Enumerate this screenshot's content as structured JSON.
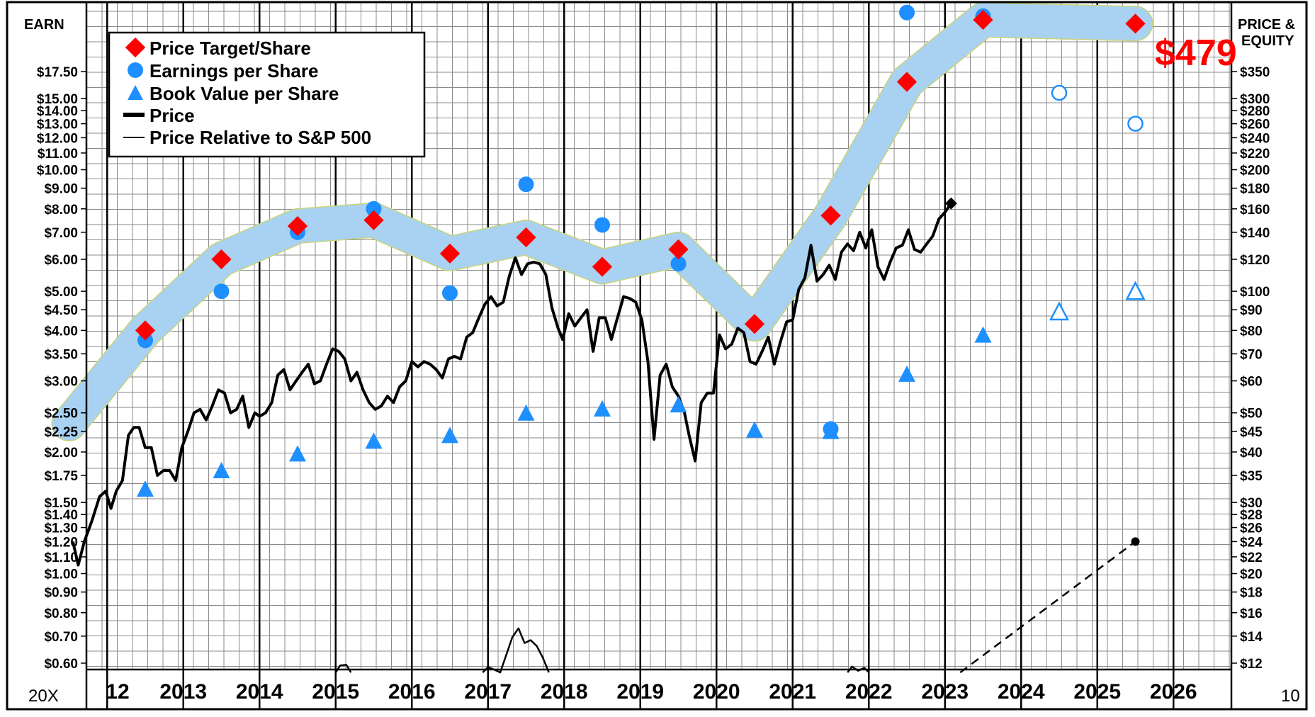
{
  "chart_data": {
    "type": "line",
    "title": "",
    "left_axis_label": "EARN",
    "right_axis_label_line1": "PRICE &",
    "right_axis_label_line2": "EQUITY",
    "corner_left": "20X",
    "corner_right": "10",
    "target_price_label": "$479",
    "x_tick_labels": [
      "12",
      "2013",
      "2014",
      "2015",
      "2016",
      "2017",
      "2018",
      "2019",
      "2020",
      "2021",
      "2022",
      "2023",
      "2024",
      "2025",
      "2026"
    ],
    "y_left_ticks": [
      {
        "label": "$17.50",
        "value": 17.5
      },
      {
        "label": "$15.00",
        "value": 15
      },
      {
        "label": "$14.00",
        "value": 14
      },
      {
        "label": "$13.00",
        "value": 13
      },
      {
        "label": "$12.00",
        "value": 12
      },
      {
        "label": "$11.00",
        "value": 11
      },
      {
        "label": "$10.00",
        "value": 10
      },
      {
        "label": "$9.00",
        "value": 9
      },
      {
        "label": "$8.00",
        "value": 8
      },
      {
        "label": "$7.00",
        "value": 7
      },
      {
        "label": "$6.00",
        "value": 6
      },
      {
        "label": "$5.00",
        "value": 5
      },
      {
        "label": "$4.50",
        "value": 4.5
      },
      {
        "label": "$4.00",
        "value": 4
      },
      {
        "label": "$3.50",
        "value": 3.5
      },
      {
        "label": "$3.00",
        "value": 3
      },
      {
        "label": "$2.50",
        "value": 2.5
      },
      {
        "label": "$2.25",
        "value": 2.25
      },
      {
        "label": "$2.00",
        "value": 2
      },
      {
        "label": "$1.75",
        "value": 1.75
      },
      {
        "label": "$1.50",
        "value": 1.5
      },
      {
        "label": "$1.40",
        "value": 1.4
      },
      {
        "label": "$1.30",
        "value": 1.3
      },
      {
        "label": "$1.20",
        "value": 1.2
      },
      {
        "label": "$1.10",
        "value": 1.1
      },
      {
        "label": "$1.00",
        "value": 1
      },
      {
        "label": "$0.90",
        "value": 0.9
      },
      {
        "label": "$0.80",
        "value": 0.8
      },
      {
        "label": "$0.70",
        "value": 0.7
      },
      {
        "label": "$0.60",
        "value": 0.6
      }
    ],
    "y_right_ticks": [
      {
        "label": "$350",
        "value": 350
      },
      {
        "label": "$300",
        "value": 300
      },
      {
        "label": "$280",
        "value": 280
      },
      {
        "label": "$260",
        "value": 260
      },
      {
        "label": "$240",
        "value": 240
      },
      {
        "label": "$220",
        "value": 220
      },
      {
        "label": "$200",
        "value": 200
      },
      {
        "label": "$180",
        "value": 180
      },
      {
        "label": "$160",
        "value": 160
      },
      {
        "label": "$140",
        "value": 140
      },
      {
        "label": "$120",
        "value": 120
      },
      {
        "label": "$100",
        "value": 100
      },
      {
        "label": "$90",
        "value": 90
      },
      {
        "label": "$80",
        "value": 80
      },
      {
        "label": "$70",
        "value": 70
      },
      {
        "label": "$60",
        "value": 60
      },
      {
        "label": "$50",
        "value": 50
      },
      {
        "label": "$45",
        "value": 45
      },
      {
        "label": "$40",
        "value": 40
      },
      {
        "label": "$35",
        "value": 35
      },
      {
        "label": "$30",
        "value": 30
      },
      {
        "label": "$28",
        "value": 28
      },
      {
        "label": "$26",
        "value": 26
      },
      {
        "label": "$24",
        "value": 24
      },
      {
        "label": "$22",
        "value": 22
      },
      {
        "label": "$20",
        "value": 20
      },
      {
        "label": "$18",
        "value": 18
      },
      {
        "label": "$16",
        "value": 16
      },
      {
        "label": "$14",
        "value": 14
      },
      {
        "label": "$12",
        "value": 12
      }
    ],
    "legend": [
      {
        "label": "Price Target/Share",
        "symbol": "diamond",
        "color": "#ff0000"
      },
      {
        "label": "Earnings per Share",
        "symbol": "circle",
        "color": "#1e8fff"
      },
      {
        "label": "Book Value per Share",
        "symbol": "triangle",
        "color": "#1e8fff"
      },
      {
        "label": "Price",
        "symbol": "thick-line",
        "color": "#000000"
      },
      {
        "label": "Price Relative to S&P 500",
        "symbol": "thin-line",
        "color": "#000000"
      }
    ],
    "colors": {
      "target": "#ff0000",
      "eps": "#1e8fff",
      "band": "#a9d1f1",
      "band_edge": "#c8d47a",
      "price": "#000000",
      "grid": "#8a8a8a"
    },
    "price_target": [
      {
        "x": 2011.5,
        "value": 2.35
      },
      {
        "x": 2012.5,
        "value": 4.0
      },
      {
        "x": 2013.5,
        "value": 6.0
      },
      {
        "x": 2014.5,
        "value": 7.25
      },
      {
        "x": 2015.5,
        "value": 7.5
      },
      {
        "x": 2016.5,
        "value": 6.2
      },
      {
        "x": 2017.5,
        "value": 6.8
      },
      {
        "x": 2018.5,
        "value": 5.75
      },
      {
        "x": 2019.5,
        "value": 6.35
      },
      {
        "x": 2020.5,
        "value": 4.15
      },
      {
        "x": 2021.5,
        "value": 7.7
      },
      {
        "x": 2022.5,
        "value": 16.5
      },
      {
        "x": 2023.5,
        "value": 23.5
      },
      {
        "x": 2025.5,
        "value": 23.0
      }
    ],
    "price_target_diamonds_from_index": 1,
    "eps": [
      {
        "x": 2012.5,
        "value": 3.78,
        "estimate": false
      },
      {
        "x": 2013.5,
        "value": 5.0,
        "estimate": false
      },
      {
        "x": 2014.5,
        "value": 7.0,
        "estimate": false
      },
      {
        "x": 2015.5,
        "value": 8.0,
        "estimate": false
      },
      {
        "x": 2016.5,
        "value": 4.95,
        "estimate": false
      },
      {
        "x": 2017.5,
        "value": 9.2,
        "estimate": false
      },
      {
        "x": 2018.5,
        "value": 7.3,
        "estimate": false
      },
      {
        "x": 2019.5,
        "value": 5.85,
        "estimate": false
      },
      {
        "x": 2021.5,
        "value": 2.28,
        "estimate": false
      },
      {
        "x": 2022.5,
        "value": 24.5,
        "estimate": false
      },
      {
        "x": 2023.5,
        "value": 24.0,
        "estimate": false
      },
      {
        "x": 2024.5,
        "value": 15.5,
        "estimate": true
      },
      {
        "x": 2025.5,
        "value": 13.0,
        "estimate": true
      }
    ],
    "book_value": [
      {
        "x": 2012.5,
        "value": 1.62,
        "estimate": false
      },
      {
        "x": 2013.5,
        "value": 1.8,
        "estimate": false
      },
      {
        "x": 2014.5,
        "value": 1.98,
        "estimate": false
      },
      {
        "x": 2015.5,
        "value": 2.13,
        "estimate": false
      },
      {
        "x": 2016.5,
        "value": 2.2,
        "estimate": false
      },
      {
        "x": 2017.5,
        "value": 2.5,
        "estimate": false
      },
      {
        "x": 2018.5,
        "value": 2.56,
        "estimate": false
      },
      {
        "x": 2019.5,
        "value": 2.62,
        "estimate": false
      },
      {
        "x": 2020.5,
        "value": 2.27,
        "estimate": false
      },
      {
        "x": 2021.5,
        "value": 2.25,
        "estimate": false
      },
      {
        "x": 2022.5,
        "value": 3.12,
        "estimate": false
      },
      {
        "x": 2023.5,
        "value": 3.9,
        "estimate": false
      },
      {
        "x": 2024.5,
        "value": 4.45,
        "estimate": true
      },
      {
        "x": 2025.5,
        "value": 5.0,
        "estimate": true
      }
    ],
    "price": [
      [
        2011.55,
        24
      ],
      [
        2011.62,
        21
      ],
      [
        2011.7,
        24
      ],
      [
        2011.8,
        27
      ],
      [
        2011.9,
        31
      ],
      [
        2011.98,
        32
      ],
      [
        2012.05,
        29
      ],
      [
        2012.12,
        32
      ],
      [
        2012.2,
        34
      ],
      [
        2012.28,
        44
      ],
      [
        2012.35,
        46
      ],
      [
        2012.42,
        46
      ],
      [
        2012.5,
        41
      ],
      [
        2012.58,
        41
      ],
      [
        2012.66,
        35
      ],
      [
        2012.74,
        36
      ],
      [
        2012.82,
        36
      ],
      [
        2012.9,
        34
      ],
      [
        2012.98,
        41
      ],
      [
        2013.06,
        45
      ],
      [
        2013.14,
        50
      ],
      [
        2013.22,
        51
      ],
      [
        2013.3,
        48
      ],
      [
        2013.38,
        52
      ],
      [
        2013.46,
        57
      ],
      [
        2013.54,
        56
      ],
      [
        2013.62,
        50
      ],
      [
        2013.7,
        51
      ],
      [
        2013.78,
        55
      ],
      [
        2013.86,
        46
      ],
      [
        2013.94,
        50
      ],
      [
        2014.0,
        49
      ],
      [
        2014.08,
        50
      ],
      [
        2014.16,
        53
      ],
      [
        2014.24,
        62
      ],
      [
        2014.32,
        64
      ],
      [
        2014.4,
        57
      ],
      [
        2014.48,
        60
      ],
      [
        2014.56,
        63
      ],
      [
        2014.64,
        66
      ],
      [
        2014.72,
        59
      ],
      [
        2014.8,
        60
      ],
      [
        2014.88,
        66
      ],
      [
        2014.96,
        72
      ],
      [
        2015.04,
        71
      ],
      [
        2015.12,
        68
      ],
      [
        2015.2,
        60
      ],
      [
        2015.28,
        63
      ],
      [
        2015.36,
        57
      ],
      [
        2015.44,
        53
      ],
      [
        2015.52,
        51
      ],
      [
        2015.6,
        52
      ],
      [
        2015.68,
        55
      ],
      [
        2015.76,
        53
      ],
      [
        2015.84,
        58
      ],
      [
        2015.92,
        60
      ],
      [
        2016.0,
        67
      ],
      [
        2016.08,
        65
      ],
      [
        2016.16,
        67
      ],
      [
        2016.24,
        66
      ],
      [
        2016.32,
        64
      ],
      [
        2016.4,
        61
      ],
      [
        2016.48,
        68
      ],
      [
        2016.56,
        69
      ],
      [
        2016.64,
        68
      ],
      [
        2016.72,
        77
      ],
      [
        2016.8,
        79
      ],
      [
        2016.88,
        86
      ],
      [
        2016.96,
        93
      ],
      [
        2017.04,
        97
      ],
      [
        2017.12,
        92
      ],
      [
        2017.2,
        94
      ],
      [
        2017.28,
        109
      ],
      [
        2017.36,
        121
      ],
      [
        2017.44,
        110
      ],
      [
        2017.52,
        117
      ],
      [
        2017.6,
        118
      ],
      [
        2017.68,
        117
      ],
      [
        2017.76,
        110
      ],
      [
        2017.84,
        91
      ],
      [
        2017.92,
        81
      ],
      [
        2017.98,
        76
      ],
      [
        2018.06,
        88
      ],
      [
        2018.14,
        82
      ],
      [
        2018.22,
        86
      ],
      [
        2018.3,
        90
      ],
      [
        2018.38,
        71
      ],
      [
        2018.46,
        86
      ],
      [
        2018.54,
        86
      ],
      [
        2018.62,
        76
      ],
      [
        2018.7,
        86
      ],
      [
        2018.78,
        97
      ],
      [
        2018.86,
        96
      ],
      [
        2018.94,
        94
      ],
      [
        2019.02,
        85
      ],
      [
        2019.1,
        67
      ],
      [
        2019.18,
        43
      ],
      [
        2019.26,
        62
      ],
      [
        2019.34,
        66
      ],
      [
        2019.42,
        58
      ],
      [
        2019.5,
        55
      ],
      [
        2019.58,
        50
      ],
      [
        2019.64,
        44
      ],
      [
        2019.72,
        38
      ],
      [
        2019.8,
        53
      ],
      [
        2019.88,
        56
      ],
      [
        2019.96,
        56
      ],
      [
        2020.04,
        78
      ],
      [
        2020.12,
        72
      ],
      [
        2020.2,
        74
      ],
      [
        2020.28,
        81
      ],
      [
        2020.36,
        79
      ],
      [
        2020.44,
        67
      ],
      [
        2020.52,
        66
      ],
      [
        2020.6,
        71
      ],
      [
        2020.68,
        77
      ],
      [
        2020.76,
        66
      ],
      [
        2020.84,
        75
      ],
      [
        2020.92,
        84
      ],
      [
        2021.0,
        85
      ],
      [
        2021.08,
        101
      ],
      [
        2021.16,
        108
      ],
      [
        2021.24,
        130
      ],
      [
        2021.32,
        106
      ],
      [
        2021.4,
        110
      ],
      [
        2021.48,
        116
      ],
      [
        2021.56,
        107
      ],
      [
        2021.64,
        125
      ],
      [
        2021.72,
        131
      ],
      [
        2021.8,
        126
      ],
      [
        2021.88,
        140
      ],
      [
        2021.96,
        128
      ],
      [
        2022.04,
        142
      ],
      [
        2022.12,
        115
      ],
      [
        2022.2,
        107
      ],
      [
        2022.28,
        118
      ],
      [
        2022.36,
        128
      ],
      [
        2022.44,
        130
      ],
      [
        2022.52,
        142
      ],
      [
        2022.6,
        127
      ],
      [
        2022.68,
        125
      ],
      [
        2022.76,
        131
      ],
      [
        2022.84,
        137
      ],
      [
        2022.92,
        151
      ],
      [
        2023.0,
        157
      ],
      [
        2023.08,
        165
      ]
    ],
    "price_last_marker": {
      "x": 2023.08,
      "value": 165
    },
    "relative_strength": [
      [
        2015.0,
        -0.05
      ],
      [
        2015.06,
        0.07
      ],
      [
        2015.14,
        0.08
      ],
      [
        2015.2,
        -0.05
      ],
      null,
      [
        2016.93,
        -0.05
      ],
      [
        2017.0,
        0.04
      ],
      [
        2017.08,
        0.0
      ],
      [
        2017.16,
        -0.05
      ],
      [
        2017.24,
        0.25
      ],
      [
        2017.32,
        0.55
      ],
      [
        2017.4,
        0.7
      ],
      [
        2017.48,
        0.45
      ],
      [
        2017.56,
        0.5
      ],
      [
        2017.64,
        0.4
      ],
      [
        2017.72,
        0.2
      ],
      [
        2017.8,
        -0.05
      ],
      null,
      [
        2021.72,
        -0.05
      ],
      [
        2021.78,
        0.05
      ],
      [
        2021.86,
        -0.02
      ],
      [
        2021.94,
        0.03
      ],
      [
        2022.0,
        -0.05
      ]
    ],
    "projection_line": [
      [
        2023.2,
        -0.05
      ],
      [
        2025.5,
        24
      ]
    ],
    "projection_end_marker": {
      "x": 2025.5,
      "value": 24
    }
  }
}
